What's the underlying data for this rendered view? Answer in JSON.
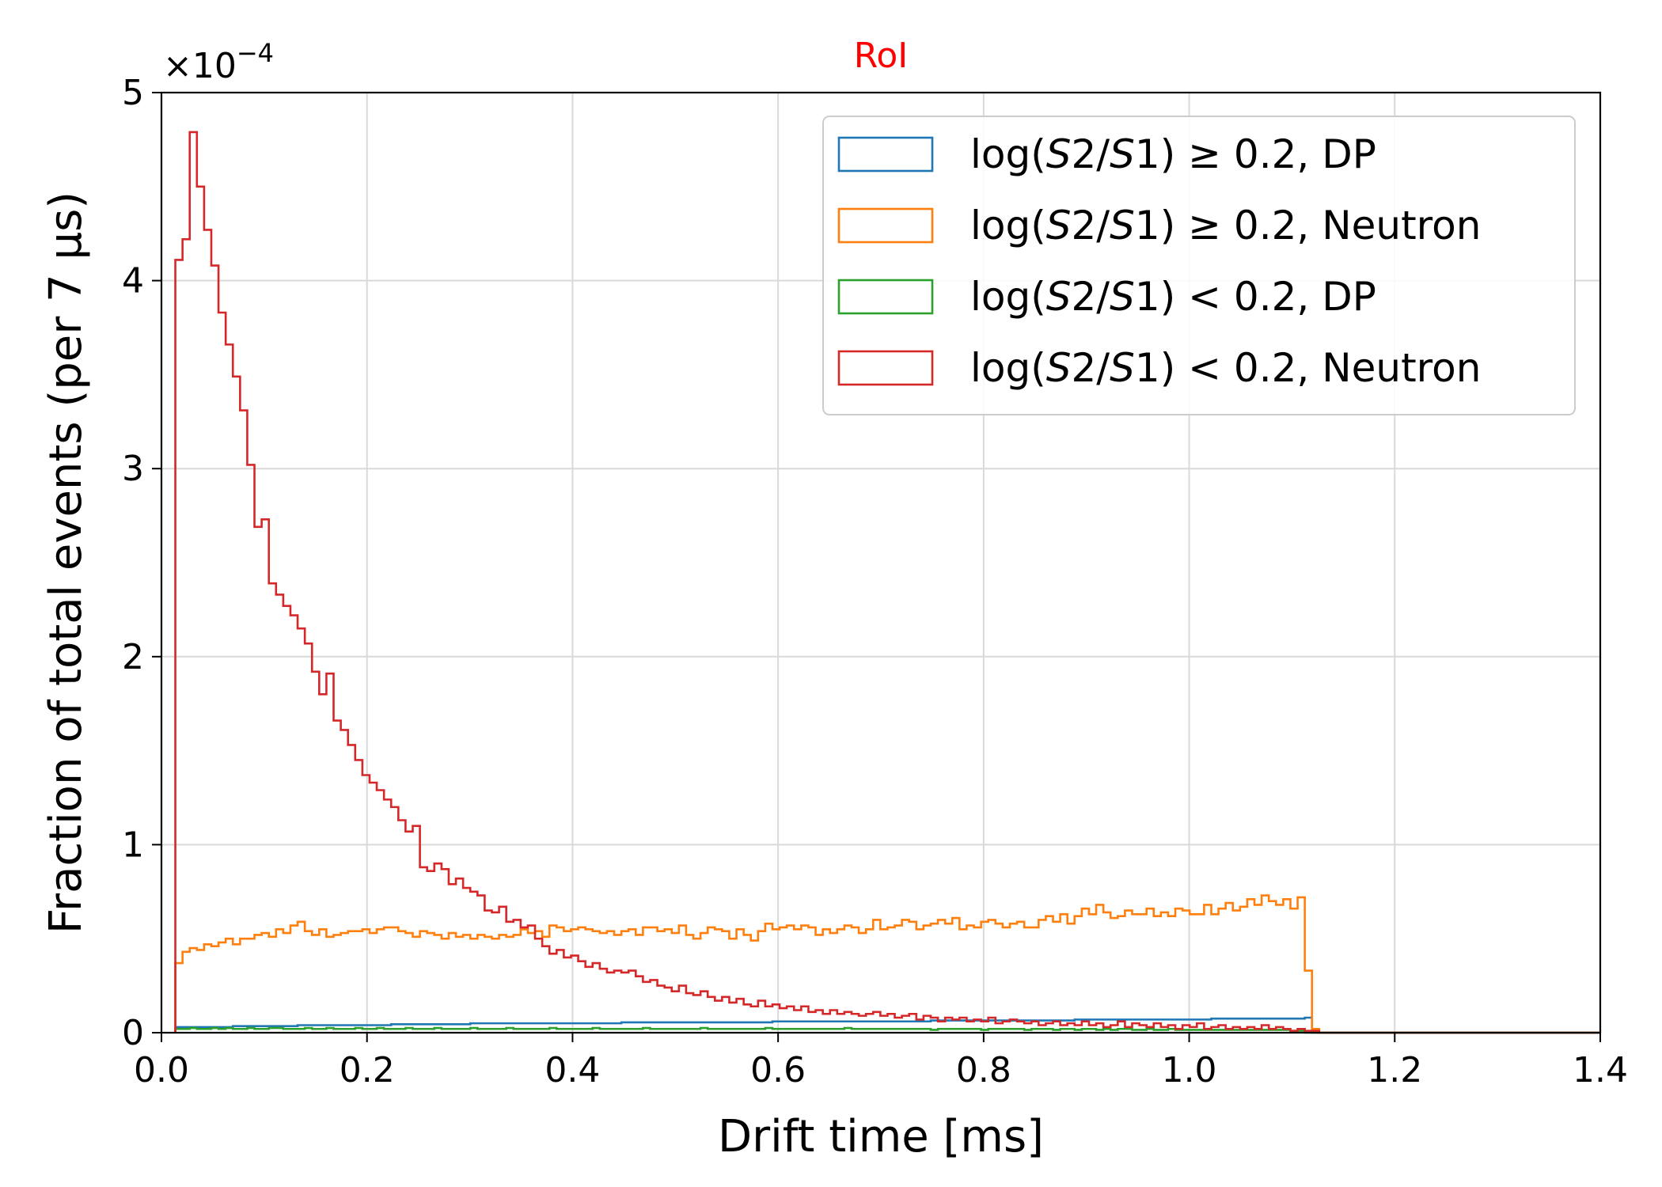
{
  "chart_data": {
    "type": "step",
    "title": "RoI",
    "title_color": "#ff0000",
    "xlabel": "Drift time [ms]",
    "ylabel": "Fraction of total events (per 7 μs)",
    "y_multiplier": "×10",
    "y_multiplier_exp": "−4",
    "xlim": [
      0.0,
      1.4
    ],
    "ylim": [
      0,
      5
    ],
    "xticks": [
      "0.0",
      "0.2",
      "0.4",
      "0.6",
      "0.8",
      "1.0",
      "1.2",
      "1.4"
    ],
    "yticks": [
      "0",
      "1",
      "2",
      "3",
      "4",
      "5"
    ],
    "grid": true,
    "legend_position": "top-right",
    "bin_width_ms": 0.007,
    "x_start_ms": 0.0135,
    "series": [
      {
        "name": "log(S2/S1) ≥ 0.2, DP",
        "legend": {
          "pre": "log(",
          "it1": "S",
          "mid": "2/",
          "it2": "S",
          "post": "1) ≥ 0.2, DP"
        },
        "color": "#1f77b4",
        "values": [
          0.03,
          0.03,
          0.03,
          0.03,
          0.03,
          0.03,
          0.03,
          0.03,
          0.035,
          0.035,
          0.035,
          0.035,
          0.035,
          0.035,
          0.035,
          0.035,
          0.035,
          0.04,
          0.04,
          0.04,
          0.04,
          0.04,
          0.04,
          0.04,
          0.04,
          0.04,
          0.04,
          0.04,
          0.04,
          0.04,
          0.045,
          0.045,
          0.045,
          0.045,
          0.045,
          0.045,
          0.045,
          0.045,
          0.045,
          0.045,
          0.045,
          0.05,
          0.05,
          0.05,
          0.05,
          0.05,
          0.05,
          0.05,
          0.05,
          0.05,
          0.05,
          0.05,
          0.05,
          0.05,
          0.05,
          0.05,
          0.05,
          0.05,
          0.05,
          0.05,
          0.05,
          0.05,
          0.055,
          0.055,
          0.055,
          0.055,
          0.055,
          0.055,
          0.055,
          0.055,
          0.055,
          0.055,
          0.055,
          0.055,
          0.055,
          0.055,
          0.055,
          0.055,
          0.055,
          0.055,
          0.055,
          0.055,
          0.055,
          0.06,
          0.06,
          0.06,
          0.06,
          0.06,
          0.06,
          0.06,
          0.06,
          0.06,
          0.06,
          0.06,
          0.06,
          0.06,
          0.06,
          0.06,
          0.06,
          0.06,
          0.06,
          0.06,
          0.06,
          0.06,
          0.06,
          0.065,
          0.065,
          0.065,
          0.065,
          0.065,
          0.065,
          0.065,
          0.065,
          0.065,
          0.065,
          0.065,
          0.065,
          0.065,
          0.065,
          0.065,
          0.065,
          0.065,
          0.065,
          0.065,
          0.065,
          0.07,
          0.07,
          0.07,
          0.07,
          0.07,
          0.07,
          0.07,
          0.07,
          0.07,
          0.07,
          0.07,
          0.07,
          0.07,
          0.07,
          0.07,
          0.07,
          0.07,
          0.07,
          0.07,
          0.075,
          0.075,
          0.075,
          0.075,
          0.075,
          0.075,
          0.075,
          0.075,
          0.075,
          0.075,
          0.075,
          0.075,
          0.075,
          0.08
        ]
      },
      {
        "name": "log(S2/S1) ≥ 0.2, Neutron",
        "legend": {
          "pre": "log(",
          "it1": "S",
          "mid": "2/",
          "it2": "S",
          "post": "1) ≥ 0.2, Neutron"
        },
        "color": "#ff7f0e",
        "values": [
          0.37,
          0.43,
          0.45,
          0.44,
          0.47,
          0.46,
          0.48,
          0.5,
          0.47,
          0.5,
          0.5,
          0.52,
          0.53,
          0.51,
          0.55,
          0.53,
          0.57,
          0.59,
          0.54,
          0.52,
          0.55,
          0.51,
          0.52,
          0.53,
          0.54,
          0.54,
          0.55,
          0.53,
          0.55,
          0.56,
          0.56,
          0.54,
          0.53,
          0.51,
          0.54,
          0.53,
          0.52,
          0.5,
          0.53,
          0.51,
          0.52,
          0.5,
          0.52,
          0.51,
          0.5,
          0.52,
          0.51,
          0.52,
          0.55,
          0.53,
          0.54,
          0.51,
          0.57,
          0.56,
          0.54,
          0.55,
          0.56,
          0.55,
          0.54,
          0.53,
          0.54,
          0.52,
          0.54,
          0.55,
          0.52,
          0.56,
          0.56,
          0.54,
          0.55,
          0.53,
          0.57,
          0.52,
          0.5,
          0.53,
          0.56,
          0.55,
          0.54,
          0.5,
          0.55,
          0.52,
          0.49,
          0.54,
          0.58,
          0.55,
          0.56,
          0.57,
          0.55,
          0.57,
          0.56,
          0.52,
          0.55,
          0.53,
          0.55,
          0.57,
          0.56,
          0.53,
          0.55,
          0.6,
          0.55,
          0.56,
          0.57,
          0.6,
          0.59,
          0.55,
          0.57,
          0.58,
          0.6,
          0.58,
          0.61,
          0.55,
          0.57,
          0.56,
          0.59,
          0.6,
          0.58,
          0.56,
          0.58,
          0.59,
          0.56,
          0.56,
          0.6,
          0.62,
          0.59,
          0.63,
          0.58,
          0.62,
          0.66,
          0.63,
          0.68,
          0.64,
          0.61,
          0.62,
          0.65,
          0.63,
          0.63,
          0.66,
          0.62,
          0.64,
          0.62,
          0.66,
          0.65,
          0.63,
          0.63,
          0.68,
          0.63,
          0.66,
          0.69,
          0.65,
          0.67,
          0.71,
          0.68,
          0.73,
          0.7,
          0.68,
          0.71,
          0.66,
          0.72,
          0.33,
          0.02
        ]
      },
      {
        "name": "log(S2/S1) < 0.2, DP",
        "legend": {
          "pre": "log(",
          "it1": "S",
          "mid": "2/",
          "it2": "S",
          "post": "1) < 0.2, DP"
        },
        "color": "#2ca02c",
        "values": [
          0.02,
          0.02,
          0.025,
          0.02,
          0.02,
          0.025,
          0.02,
          0.025,
          0.02,
          0.02,
          0.025,
          0.02,
          0.02,
          0.025,
          0.025,
          0.02,
          0.02,
          0.02,
          0.025,
          0.02,
          0.02,
          0.025,
          0.02,
          0.02,
          0.02,
          0.025,
          0.02,
          0.02,
          0.025,
          0.02,
          0.02,
          0.02,
          0.025,
          0.02,
          0.02,
          0.02,
          0.025,
          0.02,
          0.02,
          0.02,
          0.02,
          0.025,
          0.02,
          0.02,
          0.02,
          0.02,
          0.025,
          0.02,
          0.02,
          0.02,
          0.02,
          0.02,
          0.025,
          0.02,
          0.02,
          0.02,
          0.02,
          0.02,
          0.025,
          0.02,
          0.02,
          0.02,
          0.02,
          0.02,
          0.02,
          0.025,
          0.02,
          0.02,
          0.02,
          0.02,
          0.02,
          0.02,
          0.02,
          0.025,
          0.02,
          0.02,
          0.02,
          0.02,
          0.02,
          0.02,
          0.02,
          0.02,
          0.025,
          0.02,
          0.02,
          0.02,
          0.02,
          0.02,
          0.02,
          0.02,
          0.02,
          0.02,
          0.02,
          0.025,
          0.02,
          0.02,
          0.02,
          0.02,
          0.02,
          0.02,
          0.02,
          0.02,
          0.02,
          0.02,
          0.02,
          0.015,
          0.02,
          0.02,
          0.02,
          0.02,
          0.02,
          0.02,
          0.015,
          0.02,
          0.02,
          0.02,
          0.02,
          0.02,
          0.015,
          0.02,
          0.02,
          0.02,
          0.015,
          0.02,
          0.02,
          0.015,
          0.02,
          0.02,
          0.015,
          0.02,
          0.015,
          0.02,
          0.02,
          0.015,
          0.015,
          0.02,
          0.015,
          0.015,
          0.02,
          0.015,
          0.015,
          0.015,
          0.015,
          0.015,
          0.015,
          0.015,
          0.015,
          0.015,
          0.015,
          0.015,
          0.015,
          0.015,
          0.015,
          0.015,
          0.015,
          0.01,
          0.01
        ]
      },
      {
        "name": "log(S2/S1) < 0.2, Neutron",
        "legend": {
          "pre": "log(",
          "it1": "S",
          "mid": "2/",
          "it2": "S",
          "post": "1) < 0.2, Neutron"
        },
        "color": "#d62728",
        "values": [
          4.11,
          4.22,
          4.79,
          4.5,
          4.27,
          4.08,
          3.83,
          3.66,
          3.49,
          3.31,
          3.02,
          2.69,
          2.73,
          2.39,
          2.33,
          2.27,
          2.22,
          2.15,
          2.07,
          1.92,
          1.8,
          1.91,
          1.66,
          1.61,
          1.53,
          1.45,
          1.37,
          1.33,
          1.29,
          1.24,
          1.2,
          1.13,
          1.07,
          1.1,
          0.88,
          0.86,
          0.9,
          0.87,
          0.79,
          0.82,
          0.77,
          0.75,
          0.73,
          0.65,
          0.64,
          0.67,
          0.59,
          0.6,
          0.56,
          0.57,
          0.5,
          0.46,
          0.42,
          0.44,
          0.4,
          0.41,
          0.38,
          0.35,
          0.37,
          0.34,
          0.32,
          0.33,
          0.32,
          0.33,
          0.3,
          0.27,
          0.28,
          0.25,
          0.24,
          0.22,
          0.25,
          0.21,
          0.2,
          0.22,
          0.19,
          0.17,
          0.19,
          0.16,
          0.18,
          0.15,
          0.14,
          0.17,
          0.14,
          0.15,
          0.13,
          0.14,
          0.12,
          0.14,
          0.11,
          0.12,
          0.1,
          0.12,
          0.1,
          0.11,
          0.1,
          0.09,
          0.1,
          0.11,
          0.09,
          0.1,
          0.08,
          0.09,
          0.1,
          0.07,
          0.09,
          0.08,
          0.06,
          0.08,
          0.07,
          0.08,
          0.06,
          0.07,
          0.06,
          0.08,
          0.05,
          0.06,
          0.07,
          0.06,
          0.05,
          0.06,
          0.04,
          0.05,
          0.06,
          0.04,
          0.05,
          0.04,
          0.06,
          0.04,
          0.05,
          0.03,
          0.04,
          0.06,
          0.03,
          0.05,
          0.04,
          0.03,
          0.05,
          0.03,
          0.04,
          0.02,
          0.04,
          0.03,
          0.05,
          0.02,
          0.03,
          0.04,
          0.02,
          0.03,
          0.02,
          0.03,
          0.02,
          0.04,
          0.02,
          0.03,
          0.02,
          0.01,
          0.02,
          0.01,
          0.01
        ]
      }
    ]
  }
}
